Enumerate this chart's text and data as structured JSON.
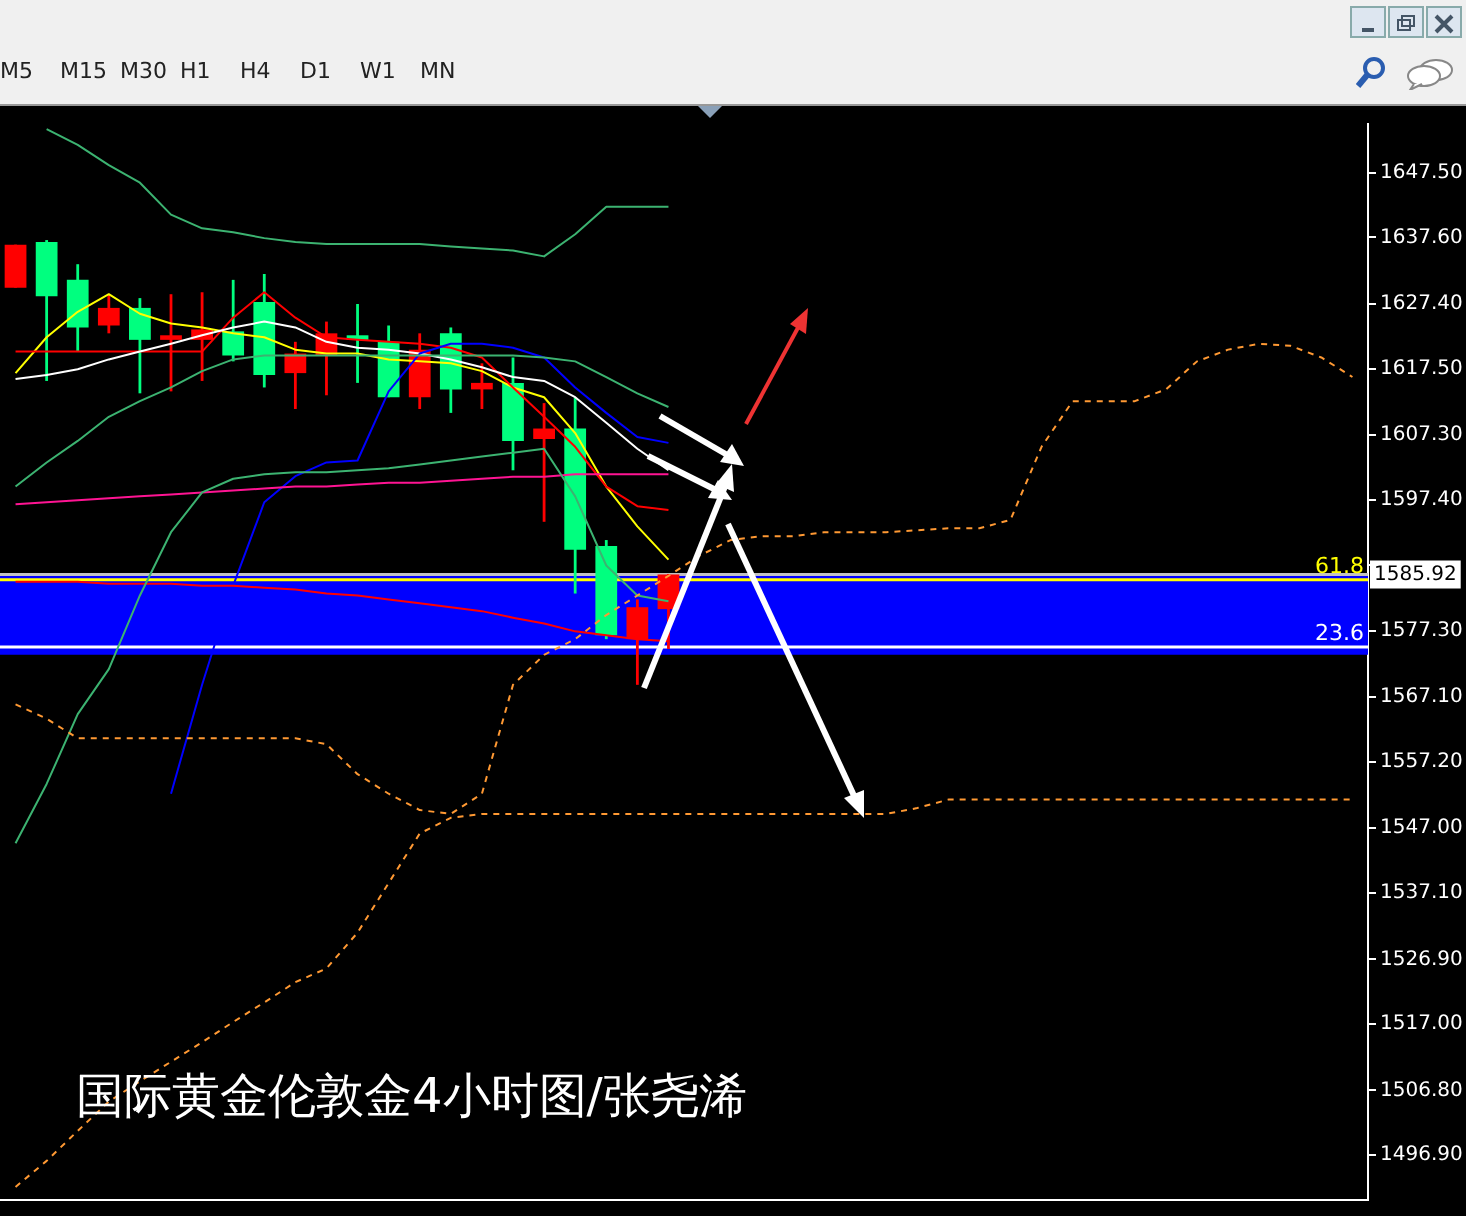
{
  "chart_data": {
    "type": "candlestick",
    "title": "国际黄金伦敦金4小时图/张尧浠",
    "annotations": [
      "M5",
      "M15",
      "M30",
      "H1",
      "H4",
      "D1",
      "W1",
      "MN",
      {
        "text": "61.8",
        "y": 1585.1
      },
      {
        "text": "23.6",
        "y": 1574.8
      }
    ],
    "categories": [
      null,
      null,
      null,
      null,
      null,
      null,
      null,
      null,
      null,
      null,
      null,
      null,
      null,
      null,
      null,
      null,
      null,
      null,
      null,
      null,
      null,
      null,
      null,
      null,
      null,
      null,
      null,
      null,
      null,
      null,
      null,
      null,
      null,
      null,
      null,
      null,
      null,
      null,
      null,
      null,
      null,
      null,
      null,
      null
    ],
    "ohlc": [
      [
        1629.9,
        1636.5,
        1629.9,
        1636.5
      ],
      [
        1636.9,
        1637.2,
        1615.6,
        1628.6
      ],
      [
        1631.1,
        1633.5,
        1620.1,
        1623.8
      ],
      [
        1624.1,
        1628.9,
        1622.9,
        1626.8
      ],
      [
        1626.8,
        1628.3,
        1613.7,
        1621.9
      ],
      [
        1621.9,
        1628.9,
        1614.0,
        1622.6
      ],
      [
        1621.9,
        1629.2,
        1615.6,
        1623.5
      ],
      [
        1623.2,
        1631.1,
        1618.6,
        1619.5
      ],
      [
        1627.7,
        1632.0,
        1614.6,
        1616.5
      ],
      [
        1616.8,
        1621.6,
        1611.3,
        1619.8
      ],
      [
        1619.5,
        1624.7,
        1613.4,
        1622.9
      ],
      [
        1622.6,
        1627.4,
        1615.3,
        1621.9
      ],
      [
        1621.6,
        1624.1,
        1613.1,
        1613.1
      ],
      [
        1613.1,
        1622.9,
        1611.3,
        1620.4
      ],
      [
        1622.9,
        1623.8,
        1610.7,
        1614.3
      ],
      [
        1614.3,
        1618.3,
        1611.3,
        1615.3
      ],
      [
        1615.3,
        1619.2,
        1601.9,
        1606.4
      ],
      [
        1606.7,
        1612.2,
        1594.0,
        1608.3
      ],
      [
        1608.3,
        1613.1,
        1583.0,
        1589.7
      ],
      [
        1590.3,
        1591.2,
        1576.0,
        1576.6
      ],
      [
        1576.0,
        1582.1,
        1569.0,
        1580.9
      ],
      [
        1580.6,
        1586.0,
        1574.5,
        1585.92
      ],
      null,
      null,
      null,
      null,
      null,
      null,
      null,
      null,
      null,
      null,
      null,
      null,
      null,
      null,
      null,
      null,
      null,
      null,
      null,
      null,
      null,
      null
    ],
    "colors": [
      "#ff0000",
      "#00ff7f",
      "#00ff7f",
      "#ff0000",
      "#00ff7f",
      "#ff0000",
      "#ff0000",
      "#00ff7f",
      "#00ff7f",
      "#ff0000",
      "#ff0000",
      "#00ff7f",
      "#00ff7f",
      "#ff0000",
      "#00ff7f",
      "#ff0000",
      "#00ff7f",
      "#ff0000",
      "#00ff7f",
      "#00ff7f",
      "#ff0000",
      "#ff0000",
      null,
      null,
      null,
      null,
      null,
      null,
      null,
      null,
      null,
      null,
      null,
      null,
      null,
      null,
      null,
      null,
      null,
      null,
      null,
      null,
      null,
      null
    ],
    "series": [
      {
        "type": "line",
        "color": "#ff9933",
        "line_style": "dashed",
        "values": [
          1566.0,
          1563.8,
          1560.8,
          1560.8,
          1560.8,
          1560.8,
          1560.8,
          1560.8,
          1560.8,
          1560.8,
          1559.9,
          1555.3,
          1552.3,
          1549.8,
          1549.2,
          1552.3,
          1569.0,
          1573.6,
          1576.0,
          1579.7,
          1582.7,
          1585.7,
          1588.8,
          1591.2,
          1591.8,
          1591.8,
          1592.4,
          1592.4,
          1592.4,
          1592.7,
          1593.0,
          1593.0,
          1594.3,
          1605.5,
          1612.5,
          1612.5,
          1612.5,
          1614.3,
          1618.6,
          1620.4,
          1621.3,
          1621.0,
          1619.2,
          1616.2
        ]
      },
      {
        "type": "line",
        "color": "#ff9933",
        "line_style": "dashed",
        "values": [
          1492.0,
          1496.0,
          1500.6,
          1505.1,
          1508.2,
          1511.2,
          1514.2,
          1517.3,
          1520.3,
          1523.4,
          1525.5,
          1531.0,
          1538.6,
          1546.2,
          1548.6,
          1549.2,
          1549.2,
          1549.2,
          1549.2,
          1549.2,
          1549.2,
          1549.2,
          1549.2,
          1549.2,
          1549.2,
          1549.2,
          1549.2,
          1549.2,
          1549.2,
          1550.1,
          1551.4,
          1551.4,
          1551.4,
          1551.4,
          1551.4,
          1551.4,
          1551.4,
          1551.4,
          1551.4,
          1551.4,
          1551.4,
          1551.4,
          1551.4,
          1551.4
        ]
      },
      {
        "type": "line",
        "color": "#3cb371",
        "values": [
          null,
          1654.2,
          1651.8,
          1648.7,
          1646.0,
          1641.1,
          1639.0,
          1638.4,
          1637.5,
          1636.9,
          1636.6,
          1636.6,
          1636.6,
          1636.6,
          1636.2,
          1635.9,
          1635.6,
          1634.7,
          1638.1,
          1642.3,
          1642.3,
          1642.3,
          null,
          null,
          null,
          null,
          null,
          null,
          null,
          null,
          null,
          null,
          null,
          null,
          null,
          null,
          null,
          null,
          null,
          null,
          null,
          null,
          null,
          null
        ]
      },
      {
        "type": "line",
        "color": "#3cb371",
        "values": [
          1599.4,
          1603.1,
          1606.4,
          1610.1,
          1612.5,
          1614.6,
          1617.1,
          1618.9,
          1619.5,
          1619.5,
          1619.5,
          1619.5,
          1619.5,
          1619.5,
          1619.5,
          1619.5,
          1619.5,
          1619.2,
          1618.6,
          1616.2,
          1613.7,
          1611.6,
          null,
          null,
          null,
          null,
          null,
          null,
          null,
          null,
          null,
          null,
          null,
          null,
          null,
          null,
          null,
          null,
          null,
          null,
          null,
          null,
          null,
          null
        ]
      },
      {
        "type": "line",
        "color": "#3cb371",
        "values": [
          1544.7,
          1553.8,
          1564.5,
          1571.4,
          1582.7,
          1592.4,
          1598.5,
          1600.6,
          1601.3,
          1601.6,
          1601.6,
          1601.9,
          1602.2,
          1602.8,
          1603.4,
          1604.0,
          1604.6,
          1605.2,
          1597.9,
          1587.3,
          1582.7,
          1581.8,
          null,
          null,
          null,
          null,
          null,
          null,
          null,
          null,
          null,
          null,
          null,
          null,
          null,
          null,
          null,
          null,
          null,
          null,
          null,
          null,
          null,
          null
        ]
      },
      {
        "type": "line",
        "color": "#ff1493",
        "values": [
          1596.7,
          1597.0,
          1597.3,
          1597.6,
          1597.9,
          1598.2,
          1598.5,
          1598.8,
          1599.1,
          1599.4,
          1599.4,
          1599.7,
          1600.0,
          1600.0,
          1600.3,
          1600.6,
          1600.9,
          1600.9,
          1601.3,
          1601.3,
          1601.3,
          1601.3,
          null,
          null,
          null,
          null,
          null,
          null,
          null,
          null,
          null,
          null,
          null,
          null,
          null,
          null,
          null,
          null,
          null,
          null,
          null,
          null,
          null,
          null
        ]
      },
      {
        "type": "line",
        "color": "#ff0000",
        "values": [
          1584.8,
          1584.8,
          1584.8,
          1584.5,
          1584.5,
          1584.5,
          1584.2,
          1584.2,
          1583.9,
          1583.6,
          1583.0,
          1582.7,
          1582.1,
          1581.5,
          1580.9,
          1580.3,
          1579.3,
          1578.4,
          1577.2,
          1576.6,
          1576.0,
          1575.7,
          null,
          null,
          null,
          null,
          null,
          null,
          null,
          null,
          null,
          null,
          null,
          null,
          null,
          null,
          null,
          null,
          null,
          null,
          null,
          null,
          null,
          null
        ]
      },
      {
        "type": "line",
        "color": "#0000ff",
        "values": [
          null,
          null,
          null,
          null,
          null,
          1552.3,
          1569.0,
          1584.2,
          1597.0,
          1601.0,
          1603.1,
          1603.4,
          1614.0,
          1619.8,
          1621.3,
          1621.3,
          1620.7,
          1619.2,
          1614.6,
          1610.7,
          1607.0,
          1606.1,
          null,
          null,
          null,
          null,
          null,
          null,
          null,
          null,
          null,
          null,
          null,
          null,
          null,
          null,
          null,
          null,
          null,
          null,
          null,
          null,
          null,
          null
        ]
      },
      {
        "type": "line",
        "color": "#ffffff",
        "values": [
          1615.9,
          1616.5,
          1617.4,
          1618.9,
          1620.1,
          1621.3,
          1622.6,
          1623.8,
          1624.7,
          1623.8,
          1621.6,
          1620.7,
          1620.4,
          1619.8,
          1618.9,
          1617.7,
          1616.2,
          1615.6,
          1613.1,
          1609.2,
          1605.2,
          1601.9,
          null,
          null,
          null,
          null,
          null,
          null,
          null,
          null,
          null,
          null,
          null,
          null,
          null,
          null,
          null,
          null,
          null,
          null,
          null,
          null,
          null,
          null
        ]
      },
      {
        "type": "line",
        "color": "#ff0000",
        "values": [
          1620.1,
          1620.1,
          1620.1,
          1620.1,
          1620.1,
          1620.1,
          1620.1,
          1625.3,
          1629.2,
          1625.3,
          1622.3,
          1621.9,
          1621.6,
          1621.3,
          1620.7,
          1619.2,
          1614.6,
          1610.1,
          1605.5,
          1599.4,
          1596.4,
          1595.8,
          null,
          null,
          null,
          null,
          null,
          null,
          null,
          null,
          null,
          null,
          null,
          null,
          null,
          null,
          null,
          null,
          null,
          null,
          null,
          null,
          null,
          null
        ]
      },
      {
        "type": "line",
        "color": "#ffff00",
        "values": [
          1616.8,
          1622.3,
          1626.2,
          1628.9,
          1625.9,
          1624.4,
          1623.8,
          1622.9,
          1622.3,
          1620.4,
          1619.8,
          1619.8,
          1618.9,
          1618.6,
          1618.3,
          1617.1,
          1614.6,
          1613.1,
          1607.6,
          1599.4,
          1593.3,
          1588.2,
          null,
          null,
          null,
          null,
          null,
          null,
          null,
          null,
          null,
          null,
          null,
          null,
          null,
          null,
          null,
          null,
          null,
          null,
          null,
          null,
          null,
          null
        ]
      }
    ],
    "bands": [
      {
        "axis": "y",
        "from": 1573.6,
        "to": 1586.0,
        "color": "#0000ff"
      }
    ],
    "ref_lines": [
      {
        "axis": "y",
        "value": 1585.92,
        "label": "1585.92",
        "color": "#c0c0c0"
      },
      {
        "axis": "y",
        "value": 1585.1,
        "color": "#ffff00"
      },
      {
        "axis": "y",
        "value": 1574.8,
        "color": "#ffffff"
      }
    ],
    "ylim": [
      1490,
      1655
    ],
    "yticks": [
      {
        "value": 1647.5,
        "label": "1647.50"
      },
      {
        "value": 1637.6,
        "label": "1637.60"
      },
      {
        "value": 1627.4,
        "label": "1627.40"
      },
      {
        "value": 1617.5,
        "label": "1617.50"
      },
      {
        "value": 1607.3,
        "label": "1607.30"
      },
      {
        "value": 1597.4,
        "label": "1597.40"
      },
      {
        "value": 1587.3,
        "label": null
      },
      {
        "value": 1577.3,
        "label": "1577.30"
      },
      {
        "value": 1567.1,
        "label": "1567.10"
      },
      {
        "value": 1557.2,
        "label": "1557.20"
      },
      {
        "value": 1547,
        "label": "1547.00"
      },
      {
        "value": 1537.1,
        "label": "1537.10"
      },
      {
        "value": 1526.9,
        "label": "1526.90"
      },
      {
        "value": 1517,
        "label": "1517.00"
      },
      {
        "value": 1506.8,
        "label": "1506.80"
      },
      {
        "value": 1496.9,
        "label": "1496.90"
      }
    ],
    "tick_labels": "y"
  }
}
